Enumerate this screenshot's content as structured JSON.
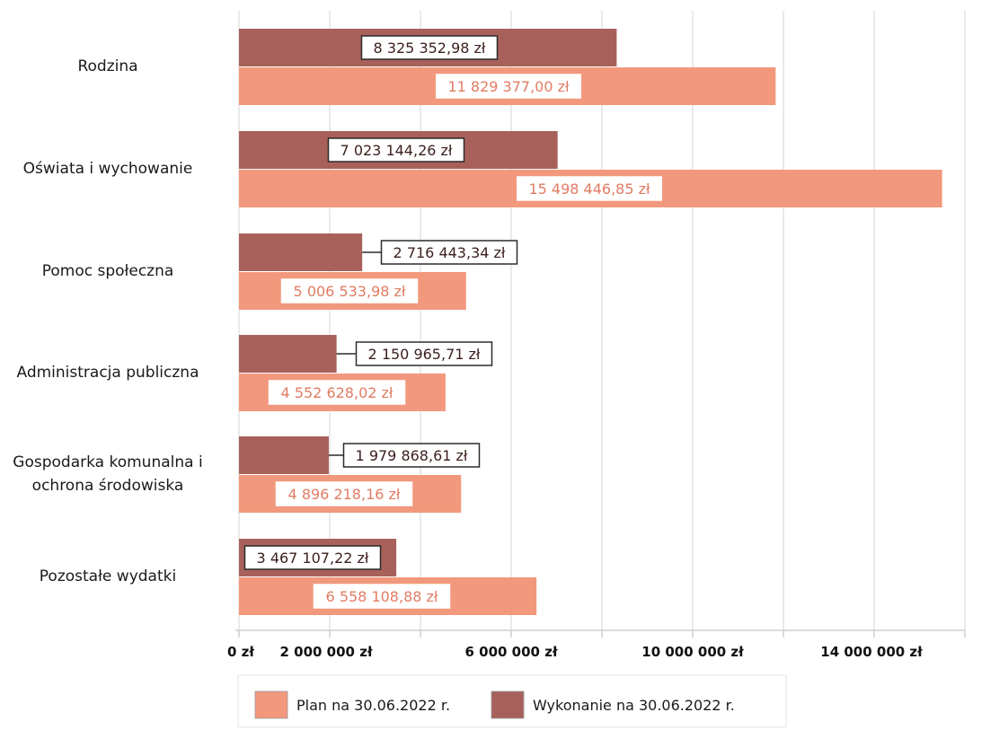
{
  "chart_data": {
    "type": "bar",
    "orientation": "horizontal",
    "categories": [
      [
        "Rodzina"
      ],
      [
        "Oświata i wychowanie"
      ],
      [
        "Pomoc społeczna"
      ],
      [
        "Administracja publiczna"
      ],
      [
        "Gospodarka komunalna i",
        "ochrona środowiska"
      ],
      [
        "Pozostałe wydatki"
      ]
    ],
    "series": [
      {
        "name": "Wykonanie na 30.06.2022 r.",
        "color": "#a8615a",
        "values": [
          8325352.98,
          7023144.26,
          2716443.34,
          2150965.71,
          1979868.61,
          3467107.22
        ],
        "labels": [
          "8 325 352,98 zł",
          "7 023 144,26 zł",
          "2 716 443,34 zł",
          "2 150 965,71 zł",
          "1 979 868,61 zł",
          "3 467 107,22 zł"
        ]
      },
      {
        "name": "Plan na 30.06.2022 r.",
        "color": "#f2987c",
        "values": [
          11829377.0,
          15498446.85,
          5006533.98,
          4552628.02,
          4896218.16,
          6558108.88
        ],
        "labels": [
          "11 829 377,00 zł",
          "15 498 446,85 zł",
          "5 006 533,98 zł",
          "4 552 628,02 zł",
          "4 896 218,16 zł",
          "6 558 108,88 zł"
        ]
      }
    ],
    "xlim": [
      0,
      16000000
    ],
    "x_ticks": [
      0,
      2000000,
      6000000,
      10000000,
      14000000
    ],
    "x_tick_labels": [
      "0 zł",
      "2 000 000 zł",
      "6 000 000 zł",
      "10 000 000 zł",
      "14 000 000 zł"
    ],
    "grid": true,
    "legend_position": "bottom",
    "legend": [
      "Plan na 30.06.2022 r.",
      "Wykonanie na 30.06.2022 r."
    ]
  }
}
